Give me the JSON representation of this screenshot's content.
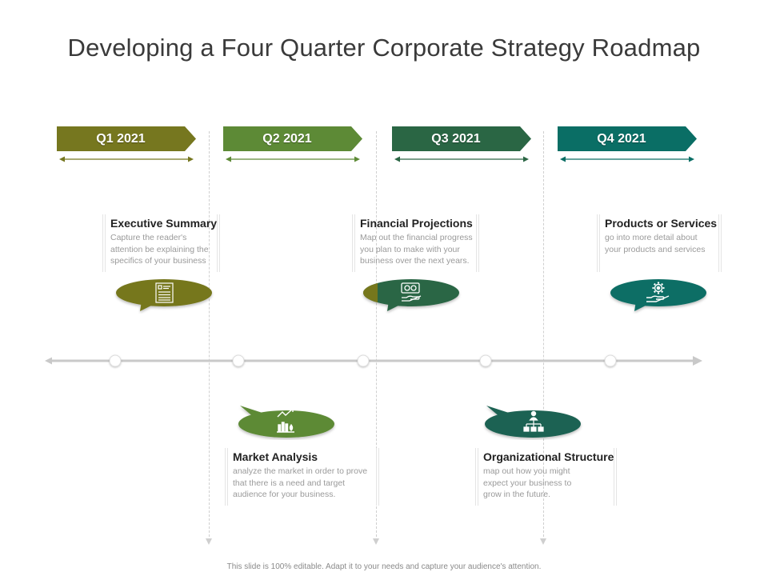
{
  "title": "Developing a Four Quarter Corporate Strategy Roadmap",
  "quarters": [
    {
      "label": "Q1 2021",
      "color": "#76771f"
    },
    {
      "label": "Q2 2021",
      "color": "#5d8a36"
    },
    {
      "label": "Q3 2021",
      "color": "#2a6644"
    },
    {
      "label": "Q4 2021",
      "color": "#0a6e65"
    }
  ],
  "milestones": [
    {
      "heading": "Executive Summary",
      "body": [
        "Capture the reader's",
        "attention be explaining the",
        "specifics of your business"
      ],
      "icon": "document-list-icon",
      "color": "#76771f"
    },
    {
      "heading": "Market Analysis",
      "body": [
        "analyze the market in order to prove",
        "that there is a need and target",
        "audience for your business."
      ],
      "icon": "bar-chart-growth-icon",
      "color": "#5d8a36"
    },
    {
      "heading": "Financial Projections",
      "body": [
        "Map out the financial progress",
        "you plan to make with your",
        "business over the next years."
      ],
      "icon": "money-hand-icon",
      "color": "#2a6644"
    },
    {
      "heading": "Organizational Structure",
      "body": [
        "map out how you might",
        "expect your business to",
        "grow in the future."
      ],
      "icon": "org-chart-icon",
      "color": "#1f6252"
    },
    {
      "heading": "Products or Services",
      "body": [
        "go into more detail about",
        "your products and services"
      ],
      "icon": "gear-hand-icon",
      "color": "#0a6e65"
    }
  ],
  "footer": "This slide is 100% editable. Adapt it to your needs and capture your audience's attention."
}
